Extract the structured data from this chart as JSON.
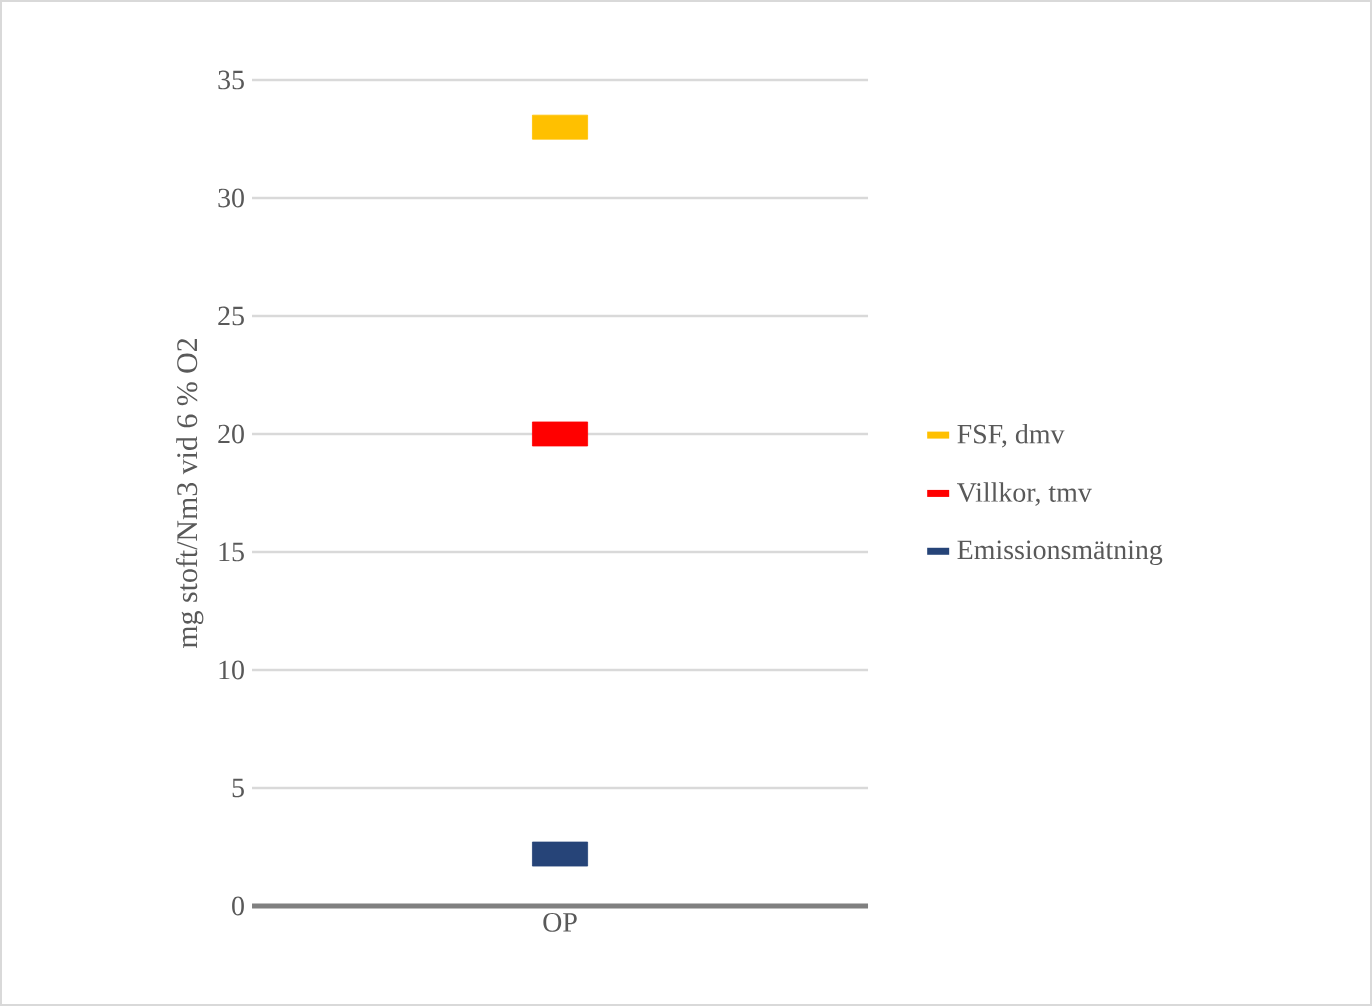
{
  "chart_data": {
    "type": "scatter",
    "ylabel": "mg stoft/Nm3 vid 6 % O2",
    "categories": [
      "OP"
    ],
    "series": [
      {
        "name": "FSF, dmv",
        "color": "#ffc000",
        "values": [
          33
        ]
      },
      {
        "name": "Villkor, tmv",
        "color": "#ff0000",
        "values": [
          20
        ]
      },
      {
        "name": "Emissionsmätning",
        "color": "#264478",
        "values": [
          2.2
        ]
      }
    ],
    "ylim": [
      0,
      35
    ],
    "yticks": [
      0,
      5,
      10,
      15,
      20,
      25,
      30,
      35
    ],
    "grid": "y",
    "legend": "right"
  }
}
